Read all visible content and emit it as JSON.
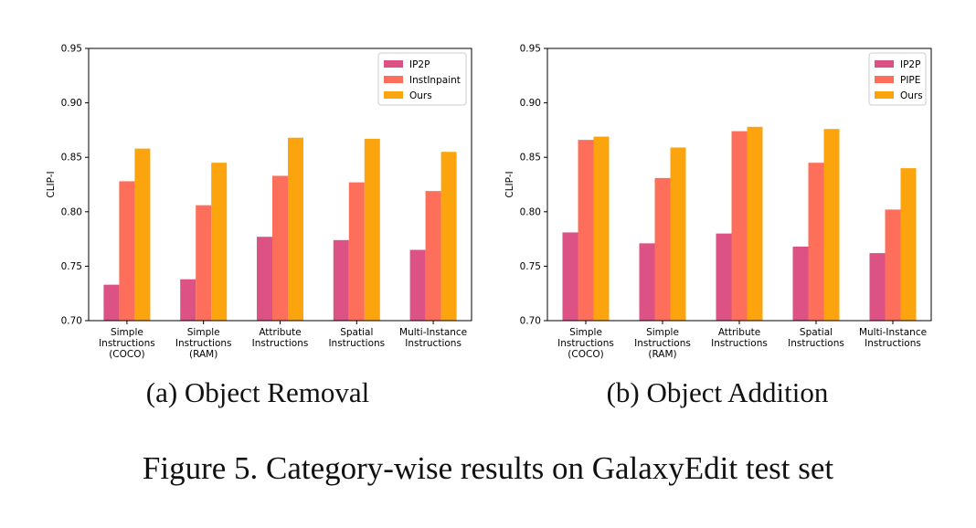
{
  "figure": {
    "caption": "Figure 5. Category-wise results on GalaxyEdit test set"
  },
  "colors": {
    "series1": "#dc5285",
    "series2": "#fd6f5a",
    "series3": "#fba40d"
  },
  "chart_data": [
    {
      "type": "bar",
      "subcaption": "(a) Object Removal",
      "ylabel": "CLIP-I",
      "xlabel": "",
      "ylim": [
        0.7,
        0.95
      ],
      "yticks": [
        "0.70",
        "0.75",
        "0.80",
        "0.85",
        "0.90",
        "0.95"
      ],
      "categories": [
        [
          "Simple",
          "Instructions",
          "(COCO)"
        ],
        [
          "Simple",
          "Instructions",
          "(RAM)"
        ],
        [
          "Attribute",
          "Instructions"
        ],
        [
          "Spatial",
          "Instructions"
        ],
        [
          "Multi-Instance",
          "Instructions"
        ]
      ],
      "legend_position": "top-right",
      "grid": false,
      "series": [
        {
          "name": "IP2P",
          "values": [
            0.733,
            0.738,
            0.777,
            0.774,
            0.765
          ]
        },
        {
          "name": "InstInpaint",
          "values": [
            0.828,
            0.806,
            0.833,
            0.827,
            0.819
          ]
        },
        {
          "name": "Ours",
          "values": [
            0.858,
            0.845,
            0.868,
            0.867,
            0.855
          ]
        }
      ]
    },
    {
      "type": "bar",
      "subcaption": "(b) Object Addition",
      "ylabel": "CLIP-I",
      "xlabel": "",
      "ylim": [
        0.7,
        0.95
      ],
      "yticks": [
        "0.70",
        "0.75",
        "0.80",
        "0.85",
        "0.90",
        "0.95"
      ],
      "categories": [
        [
          "Simple",
          "Instructions",
          "(COCO)"
        ],
        [
          "Simple",
          "Instructions",
          "(RAM)"
        ],
        [
          "Attribute",
          "Instructions"
        ],
        [
          "Spatial",
          "Instructions"
        ],
        [
          "Multi-Instance",
          "Instructions"
        ]
      ],
      "legend_position": "top-right",
      "grid": false,
      "series": [
        {
          "name": "IP2P",
          "values": [
            0.781,
            0.771,
            0.78,
            0.768,
            0.762
          ]
        },
        {
          "name": "PIPE",
          "values": [
            0.866,
            0.831,
            0.874,
            0.845,
            0.802
          ]
        },
        {
          "name": "Ours",
          "values": [
            0.869,
            0.859,
            0.878,
            0.876,
            0.84
          ]
        }
      ]
    }
  ]
}
